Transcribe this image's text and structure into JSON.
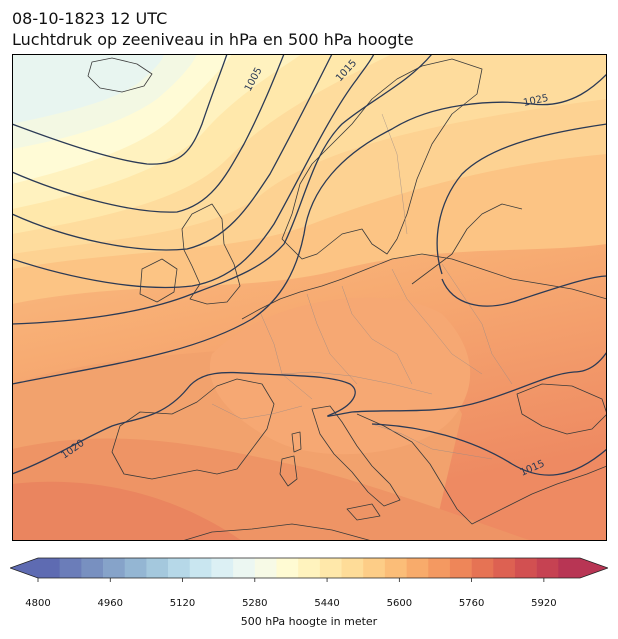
{
  "header": {
    "datetime": "08-10-1823 12 UTC",
    "subtitle": "Luchtdruk op zeeniveau in hPa en 500 hPa hoogte"
  },
  "map": {
    "region": "Europe",
    "isobar_color": "#2b3a55",
    "coast_color": "#3a3a3a",
    "isobar_labels": [
      "1005",
      "1015",
      "1025",
      "1020",
      "1015"
    ]
  },
  "colorbar": {
    "label": "500 hPa hoogte in meter",
    "min": 4800,
    "max": 6000,
    "step": 40,
    "ticks": [
      "4800",
      "4960",
      "5120",
      "5280",
      "5440",
      "5600",
      "5760",
      "5920"
    ],
    "extend": "both",
    "colors": [
      "#5e6bb2",
      "#6b7db9",
      "#7890c0",
      "#86a3c9",
      "#94b6d3",
      "#a4c8dd",
      "#b6d8e8",
      "#c9e6f0",
      "#dcf0f4",
      "#ecf7f2",
      "#f7fae6",
      "#fffbd3",
      "#fff3be",
      "#ffe8aa",
      "#fedc98",
      "#fdcd87",
      "#fbbd78",
      "#f8ab6b",
      "#f49961",
      "#ee8659",
      "#e67354",
      "#dd6152",
      "#d25051",
      "#c64252",
      "#b83554"
    ]
  }
}
